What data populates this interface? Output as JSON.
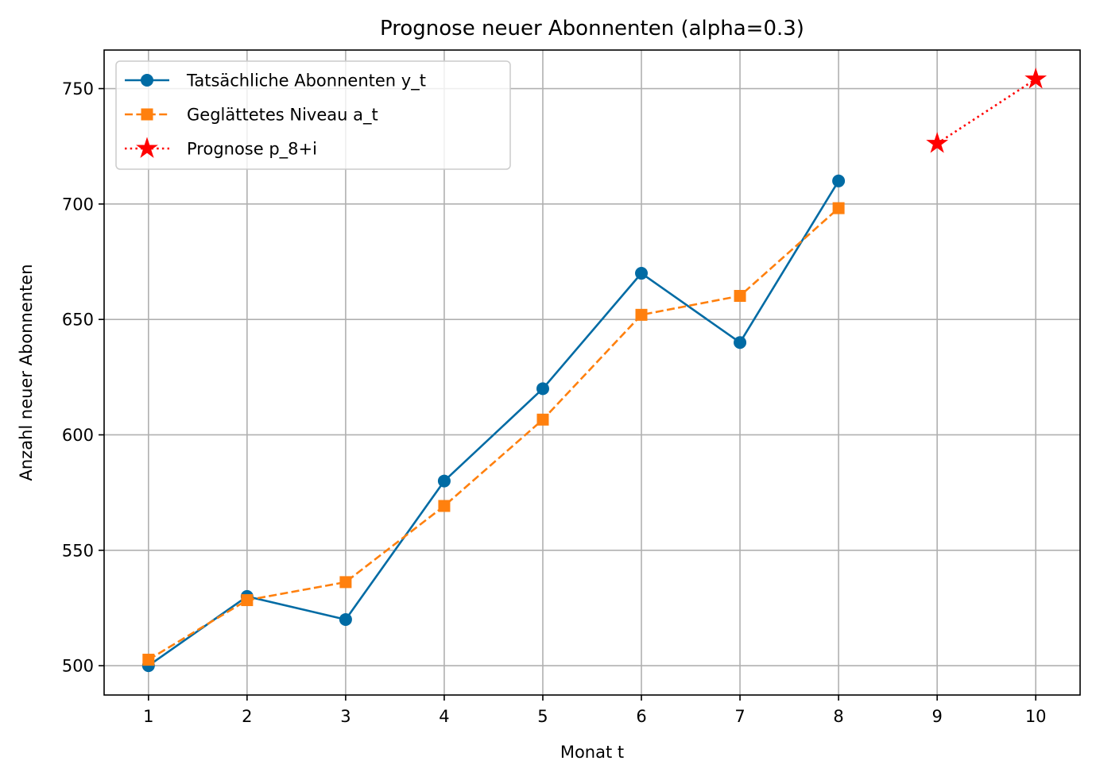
{
  "chart_data": {
    "type": "line",
    "title": "Prognose neuer Abonnenten (alpha=0.3)",
    "xlabel": "Monat t",
    "ylabel": "Anzahl neuer Abonnenten",
    "xlim": [
      0.55,
      10.45
    ],
    "ylim": [
      487.3,
      766.7
    ],
    "x_ticks": [
      1,
      2,
      3,
      4,
      5,
      6,
      7,
      8,
      9,
      10
    ],
    "y_ticks": [
      500,
      550,
      600,
      650,
      700,
      750
    ],
    "grid": true,
    "legend_position": "upper left",
    "series": [
      {
        "name": "Tatsächliche Abonnenten y_t",
        "x": [
          1,
          2,
          3,
          4,
          5,
          6,
          7,
          8
        ],
        "values": [
          500,
          530,
          520,
          580,
          620,
          670,
          640,
          710
        ],
        "color": "#006ba4",
        "line_style": "solid",
        "marker": "circle"
      },
      {
        "name": "Geglättetes Niveau a_t",
        "x": [
          1,
          2,
          3,
          4,
          5,
          6,
          7,
          8
        ],
        "values": [
          502.6,
          528.4,
          536.2,
          569.2,
          606.6,
          652.0,
          660.2,
          698.2
        ],
        "color": "#ff800e",
        "line_style": "dashed",
        "marker": "square"
      },
      {
        "name": "Prognose p_8+i",
        "x": [
          9,
          10
        ],
        "values": [
          726.2,
          754.1
        ],
        "color": "#ff0000",
        "line_style": "dotted",
        "marker": "star"
      }
    ]
  }
}
